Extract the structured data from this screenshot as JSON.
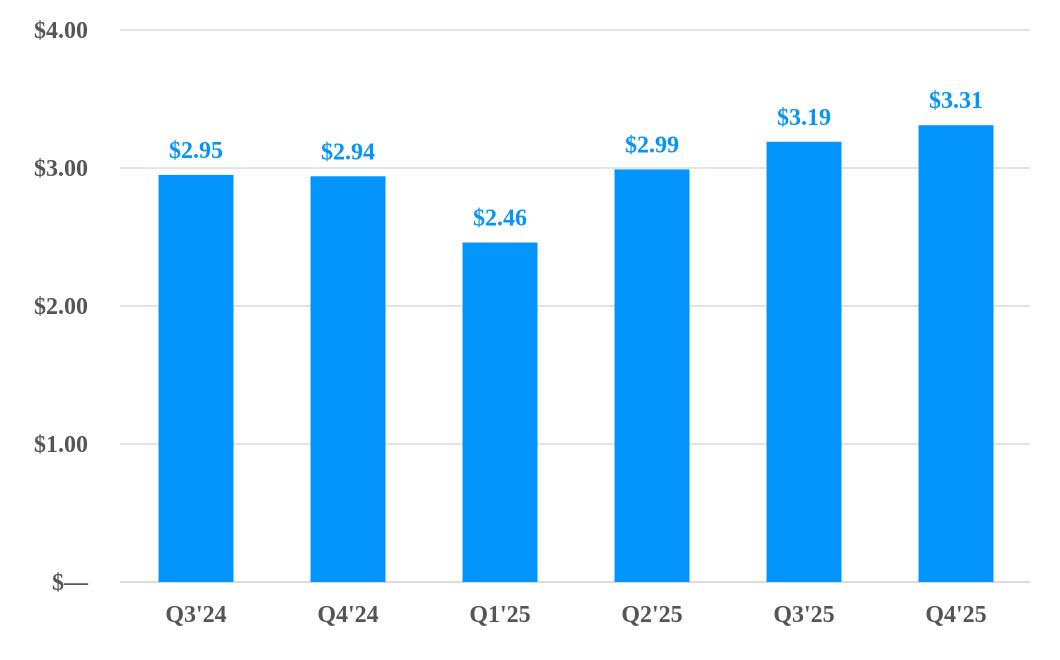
{
  "chart_data": {
    "type": "bar",
    "categories": [
      "Q3'24",
      "Q4'24",
      "Q1'25",
      "Q2'25",
      "Q3'25",
      "Q4'25"
    ],
    "values": [
      2.95,
      2.94,
      2.46,
      2.99,
      3.19,
      3.31
    ],
    "data_labels": [
      "$2.95",
      "$2.94",
      "$2.46",
      "$2.99",
      "$3.19",
      "$3.31"
    ],
    "title": "",
    "xlabel": "",
    "ylabel": "",
    "ylim": [
      0,
      4
    ],
    "yticks": [
      {
        "value": 0,
        "label": "$—"
      },
      {
        "value": 1,
        "label": "$1.00"
      },
      {
        "value": 2,
        "label": "$2.00"
      },
      {
        "value": 3,
        "label": "$3.00"
      },
      {
        "value": 4,
        "label": "$4.00"
      }
    ],
    "grid": true,
    "legend": "none",
    "colors": {
      "bar": "#0394fc",
      "label": "#0394fc",
      "tick": "#555555",
      "grid": "#e3e3e3"
    }
  }
}
